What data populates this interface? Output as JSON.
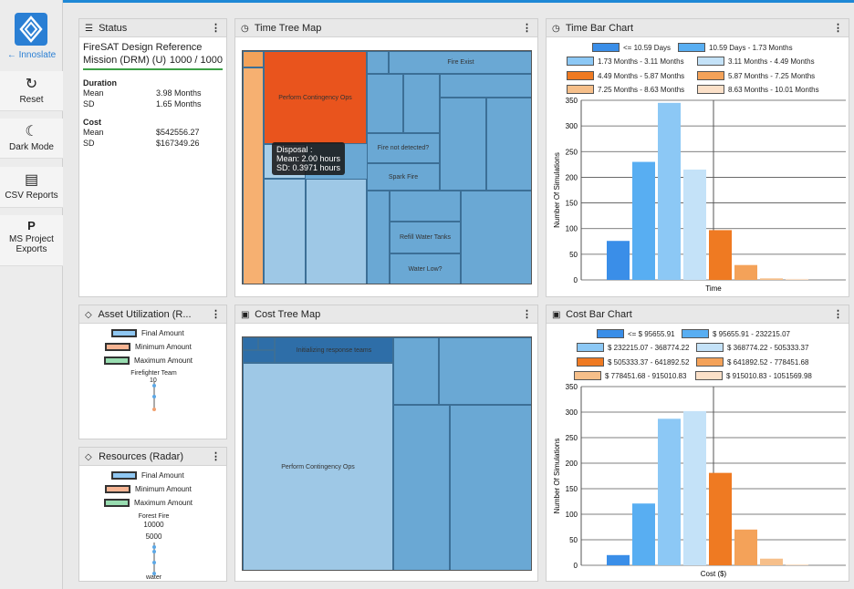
{
  "sidebar": {
    "logo_label": "Innoslate",
    "buttons": [
      {
        "label": "Reset",
        "icon": "reset-icon",
        "glyph": "↻"
      },
      {
        "label": "Dark Mode",
        "icon": "moon-icon",
        "glyph": "☾"
      },
      {
        "label": "CSV Reports",
        "icon": "csv-icon",
        "glyph": "▤"
      },
      {
        "label": "MS Project Exports",
        "icon": "ms-project-icon",
        "glyph": "P"
      }
    ]
  },
  "status": {
    "title": "Status",
    "mission": "FireSAT Design Reference Mission (DRM) (U)",
    "count": "1000 / 1000",
    "duration_label": "Duration",
    "duration": [
      {
        "k": "Mean",
        "v": "3.98 Months"
      },
      {
        "k": "SD",
        "v": "1.65 Months"
      }
    ],
    "cost_label": "Cost",
    "cost": [
      {
        "k": "Mean",
        "v": "$542556.27"
      },
      {
        "k": "SD",
        "v": "$167349.26"
      }
    ]
  },
  "time_tree": {
    "title": "Time Tree Map",
    "labels": {
      "contingency": "Perform Contingency Ops",
      "fire_exist": "Fire Exist",
      "fire_not": "Fire not detected?",
      "spark": "Spark Fire",
      "refill": "Refill Water Tanks",
      "water_low": "Water Low?"
    },
    "tooltip": {
      "line1": "Disposal :",
      "line2": "Mean: 2.00 hours",
      "line3": "SD: 0.3971 hours"
    }
  },
  "time_bar": {
    "title": "Time Bar Chart",
    "legend": [
      "<= 10.59 Days",
      "10.59 Days - 1.73 Months",
      "1.73 Months - 3.11 Months",
      "3.11 Months - 4.49 Months",
      "4.49 Months - 5.87 Months",
      "5.87 Months - 7.25 Months",
      "7.25 Months - 8.63 Months",
      "8.63 Months - 10.01 Months"
    ]
  },
  "asset": {
    "title": "Asset Utilization (R...",
    "legend": [
      "Final Amount",
      "Minimum Amount",
      "Maximum Amount"
    ],
    "axis_label": "Firefighter Team",
    "tick": "10"
  },
  "resources": {
    "title": "Resources (Radar)",
    "legend": [
      "Final Amount",
      "Minimum Amount",
      "Maximum Amount"
    ],
    "axis_top": "Forest Fire",
    "tick1": "10000",
    "tick2": "5000",
    "axis_bottom": "water"
  },
  "cost_tree": {
    "title": "Cost Tree Map",
    "labels": {
      "initializing": "Initializing response teams",
      "contingency": "Perform Contingency Ops"
    }
  },
  "cost_bar": {
    "title": "Cost Bar Chart",
    "legend": [
      "<= $ 95655.91",
      "$ 95655.91 - 232215.07",
      "$ 232215.07 - 368774.22",
      "$ 368774.22 - 505333.37",
      "$ 505333.37 - 641892.52",
      "$ 641892.52 - 778451.68",
      "$ 778451.68 - 915010.83",
      "$ 915010.83 - 1051569.98"
    ]
  },
  "colors": [
    "#3a8ee8",
    "#58aef2",
    "#8cc8f5",
    "#c4e2f8",
    "#ef7a22",
    "#f4a259",
    "#f6bf8a",
    "#fbe0c8"
  ],
  "chart_data": [
    {
      "type": "bar",
      "title": "Time Bar Chart",
      "xlabel": "Time",
      "ylabel": "Number Of Simulations",
      "ylim": [
        0,
        350
      ],
      "yticks": [
        0,
        50,
        100,
        150,
        200,
        250,
        300,
        350
      ],
      "categories": [
        "<= 10.59 Days",
        "10.59 Days - 1.73 Months",
        "1.73 Months - 3.11 Months",
        "3.11 Months - 4.49 Months",
        "4.49 Months - 5.87 Months",
        "5.87 Months - 7.25 Months",
        "7.25 Months - 8.63 Months",
        "8.63 Months - 10.01 Months"
      ],
      "values": [
        76,
        230,
        345,
        215,
        97,
        29,
        3,
        2
      ]
    },
    {
      "type": "bar",
      "title": "Cost Bar Chart",
      "xlabel": "Cost ($)",
      "ylabel": "Number Of Simulations",
      "ylim": [
        0,
        350
      ],
      "yticks": [
        0,
        50,
        100,
        150,
        200,
        250,
        300,
        350
      ],
      "categories": [
        "<= $ 95655.91",
        "$ 95655.91 - 232215.07",
        "$ 232215.07 - 368774.22",
        "$ 368774.22 - 505333.37",
        "$ 505333.37 - 641892.52",
        "$ 641892.52 - 778451.68",
        "$ 778451.68 - 915010.83",
        "$ 915010.83 - 1051569.98"
      ],
      "values": [
        20,
        121,
        287,
        302,
        181,
        70,
        13,
        2
      ]
    }
  ]
}
